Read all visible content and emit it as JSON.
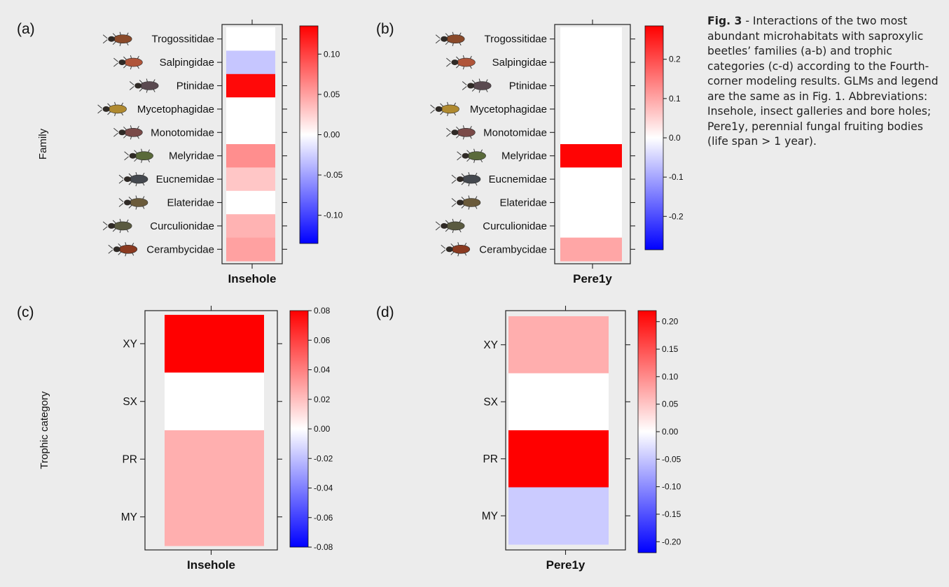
{
  "caption": {
    "label": "Fig. 3",
    "text": " - Interactions of the two most abundant microhabitats with saproxylic beetles’ families (a-b) and trophic categories (c-d) according to the Fourth-corner modeling results. GLMs and legend are the same as in Fig. 1. Abbreviations: Insehole, insect galleries and bore holes; Pere1y, perennial fungal fruiting bodies (life span > 1 year)."
  },
  "colors": {
    "low": "#0000ff",
    "mid": "#ffffff",
    "high": "#ff0000",
    "frame": "#222222",
    "background": "#ececec"
  },
  "chart_data": [
    {
      "type": "heatmap",
      "panel": "(a)",
      "ylabel": "Family",
      "xlabel": "Insehole",
      "columns": [
        "Insehole"
      ],
      "rows": [
        "Trogossitidae",
        "Salpingidae",
        "Ptinidae",
        "Mycetophagidae",
        "Monotomidae",
        "Melyridae",
        "Eucnemidae",
        "Elateridae",
        "Curculionidae",
        "Cerambycidae"
      ],
      "values": [
        0.0,
        -0.03,
        0.13,
        0.0,
        0.0,
        0.06,
        0.03,
        0.0,
        0.04,
        0.05
      ],
      "legend_range": [
        -0.135,
        0.135
      ],
      "legend_ticks": [
        0.1,
        0.05,
        0.0,
        -0.05,
        -0.1
      ],
      "legend_tick_labels": [
        "0.10",
        "0.05",
        "0.00",
        "-0.05",
        "-0.10"
      ],
      "icons": [
        "beetle-icon",
        "beetle-icon",
        "beetle-icon",
        "beetle-icon",
        "beetle-icon",
        "beetle-icon",
        "beetle-icon",
        "beetle-icon",
        "beetle-icon",
        "beetle-icon"
      ]
    },
    {
      "type": "heatmap",
      "panel": "(b)",
      "ylabel": "",
      "xlabel": "Pere1y",
      "columns": [
        "Pere1y"
      ],
      "rows": [
        "Trogossitidae",
        "Salpingidae",
        "Ptinidae",
        "Mycetophagidae",
        "Monotomidae",
        "Melyridae",
        "Eucnemidae",
        "Elateridae",
        "Curculionidae",
        "Cerambycidae"
      ],
      "values": [
        0.0,
        0.0,
        0.0,
        0.0,
        0.0,
        0.28,
        0.0,
        0.0,
        0.0,
        0.1
      ],
      "legend_range": [
        -0.285,
        0.285
      ],
      "legend_ticks": [
        0.2,
        0.1,
        0.0,
        -0.1,
        -0.2
      ],
      "legend_tick_labels": [
        "0.2",
        "0.1",
        "0.0",
        "-0.1",
        "-0.2"
      ],
      "icons": [
        "beetle-icon",
        "beetle-icon",
        "beetle-icon",
        "beetle-icon",
        "beetle-icon",
        "beetle-icon",
        "beetle-icon",
        "beetle-icon",
        "beetle-icon",
        "beetle-icon"
      ]
    },
    {
      "type": "heatmap",
      "panel": "(c)",
      "ylabel": "Trophic category",
      "xlabel": "Insehole",
      "columns": [
        "Insehole"
      ],
      "rows": [
        "XY",
        "SX",
        "PR",
        "MY"
      ],
      "values": [
        0.08,
        0.0,
        0.025,
        0.025
      ],
      "legend_range": [
        -0.08,
        0.08
      ],
      "legend_ticks": [
        0.08,
        0.06,
        0.04,
        0.02,
        0.0,
        -0.02,
        -0.04,
        -0.06,
        -0.08
      ],
      "legend_tick_labels": [
        "0.08",
        "0.06",
        "0.04",
        "0.02",
        "0.00",
        "-0.02",
        "-0.04",
        "-0.06",
        "-0.08"
      ]
    },
    {
      "type": "heatmap",
      "panel": "(d)",
      "ylabel": "",
      "xlabel": "Pere1y",
      "columns": [
        "Pere1y"
      ],
      "rows": [
        "XY",
        "SX",
        "PR",
        "MY"
      ],
      "values": [
        0.07,
        0.0,
        0.22,
        -0.045
      ],
      "legend_range": [
        -0.22,
        0.22
      ],
      "legend_ticks": [
        0.2,
        0.15,
        0.1,
        0.05,
        0.0,
        -0.05,
        -0.1,
        -0.15,
        -0.2
      ],
      "legend_tick_labels": [
        "0.20",
        "0.15",
        "0.10",
        "0.05",
        "0.00",
        "-0.05",
        "-0.10",
        "-0.15",
        "-0.20"
      ]
    }
  ]
}
